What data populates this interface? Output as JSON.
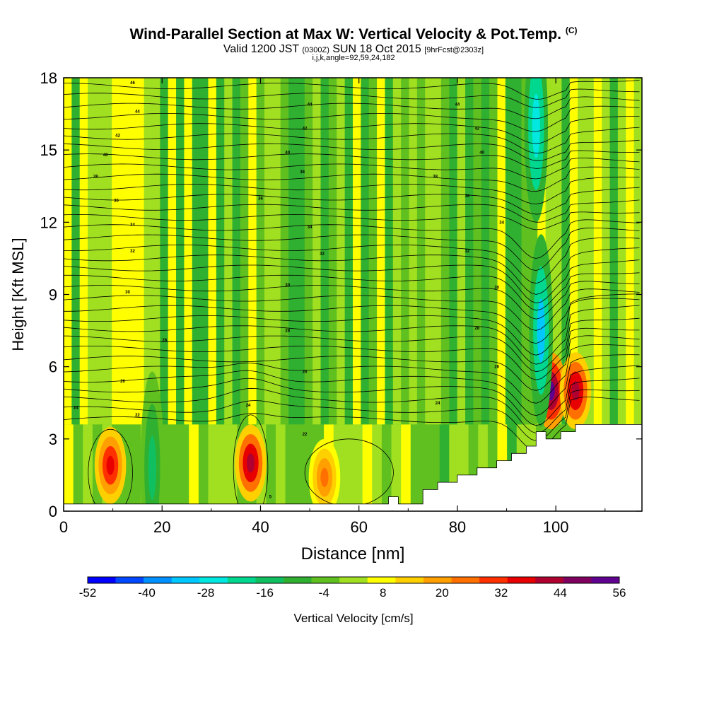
{
  "header": {
    "title_main": "Wind-Parallel Section at Max W: Vertical Velocity & Pot.Temp.",
    "copyright": "(C)",
    "valid_prefix": "Valid 1200 JST",
    "valid_utc": "(0300Z)",
    "valid_date": "SUN 18 Oct 2015",
    "forecast": "[9hrFcst@2303z]",
    "indices": "i,j,k,angle=92,59,24,182"
  },
  "chart_data": {
    "type": "heatmap",
    "xlabel": "Distance [nm]",
    "ylabel": "Height [Kft MSL]",
    "xlim": [
      0,
      117.5
    ],
    "ylim": [
      0,
      18
    ],
    "x_ticks": [
      0,
      20,
      40,
      60,
      80,
      100
    ],
    "y_ticks": [
      0,
      3,
      6,
      9,
      12,
      15,
      18
    ],
    "colorbar": {
      "label": "Vertical Velocity [cm/s]",
      "min": -52,
      "max": 56,
      "ticks": [
        -52,
        -40,
        -28,
        -16,
        -4,
        8,
        20,
        32,
        44,
        56
      ],
      "colors": [
        "#0000ff",
        "#0048ff",
        "#0090ff",
        "#00c8ff",
        "#00e8e0",
        "#00d890",
        "#10c060",
        "#30b030",
        "#60c020",
        "#a0e020",
        "#ffff00",
        "#ffd000",
        "#ffa000",
        "#ff7000",
        "#ff3000",
        "#e80000",
        "#b00030",
        "#800060",
        "#600090"
      ]
    },
    "terrain": [
      [
        0,
        0.3
      ],
      [
        66,
        0.3
      ],
      [
        66,
        0.6
      ],
      [
        68,
        0.6
      ],
      [
        68,
        0.3
      ],
      [
        73,
        0.3
      ],
      [
        73,
        0.9
      ],
      [
        76,
        0.9
      ],
      [
        76,
        1.2
      ],
      [
        80,
        1.2
      ],
      [
        80,
        1.5
      ],
      [
        84,
        1.5
      ],
      [
        84,
        1.8
      ],
      [
        88,
        1.8
      ],
      [
        88,
        2.1
      ],
      [
        91,
        2.1
      ],
      [
        91,
        2.4
      ],
      [
        94,
        2.4
      ],
      [
        94,
        2.7
      ],
      [
        96,
        2.7
      ],
      [
        96,
        3.3
      ],
      [
        98,
        3.3
      ],
      [
        98,
        3.0
      ],
      [
        101,
        3.0
      ],
      [
        101,
        3.3
      ],
      [
        104,
        3.3
      ],
      [
        104,
        3.6
      ],
      [
        117.5,
        3.6
      ]
    ],
    "w_features": [
      {
        "x": 9.5,
        "z": 1.9,
        "w": 36
      },
      {
        "x": 18,
        "z": 1.8,
        "w": -14
      },
      {
        "x": 38,
        "z": 2.0,
        "w": 40
      },
      {
        "x": 53,
        "z": 1.4,
        "w": 22
      },
      {
        "x": 99,
        "z": 5.0,
        "w": 52
      },
      {
        "x": 104,
        "z": 5.0,
        "w": 44
      },
      {
        "x": 97,
        "z": 7.5,
        "w": -30
      },
      {
        "x": 96,
        "z": 16,
        "w": -28
      }
    ],
    "theta_contour_labels": [
      {
        "text": "46",
        "x": 14,
        "z": 17.8
      },
      {
        "text": "44",
        "x": 15,
        "z": 16.6
      },
      {
        "text": "42",
        "x": 11,
        "z": 15.6
      },
      {
        "text": "40",
        "x": 8.5,
        "z": 14.8
      },
      {
        "text": "38",
        "x": 6.5,
        "z": 13.9
      },
      {
        "text": "36",
        "x": 10.7,
        "z": 12.9
      },
      {
        "text": "34",
        "x": 14,
        "z": 11.9
      },
      {
        "text": "32",
        "x": 14,
        "z": 10.8
      },
      {
        "text": "30",
        "x": 13,
        "z": 9.1
      },
      {
        "text": "28",
        "x": 20.5,
        "z": 7.1
      },
      {
        "text": "26",
        "x": 12,
        "z": 5.4
      },
      {
        "text": "24",
        "x": 2.5,
        "z": 4.3
      },
      {
        "text": "22",
        "x": 15,
        "z": 4.0
      },
      {
        "text": "44",
        "x": 50,
        "z": 16.9
      },
      {
        "text": "42",
        "x": 49,
        "z": 15.9
      },
      {
        "text": "40",
        "x": 45.5,
        "z": 14.9
      },
      {
        "text": "38",
        "x": 48.5,
        "z": 14.1
      },
      {
        "text": "36",
        "x": 40,
        "z": 13.0
      },
      {
        "text": "34",
        "x": 50,
        "z": 11.8
      },
      {
        "text": "32",
        "x": 52.5,
        "z": 10.7
      },
      {
        "text": "30",
        "x": 45.5,
        "z": 9.4
      },
      {
        "text": "28",
        "x": 45.5,
        "z": 7.5
      },
      {
        "text": "26",
        "x": 49,
        "z": 5.8
      },
      {
        "text": "24",
        "x": 37.5,
        "z": 4.4
      },
      {
        "text": "22",
        "x": 49,
        "z": 3.2
      },
      {
        "text": "44",
        "x": 80,
        "z": 16.9
      },
      {
        "text": "42",
        "x": 84,
        "z": 15.9
      },
      {
        "text": "40",
        "x": 85,
        "z": 14.9
      },
      {
        "text": "38",
        "x": 75.5,
        "z": 13.9
      },
      {
        "text": "36",
        "x": 82,
        "z": 13.1
      },
      {
        "text": "34",
        "x": 89,
        "z": 12.0
      },
      {
        "text": "32",
        "x": 82,
        "z": 10.8
      },
      {
        "text": "30",
        "x": 88,
        "z": 9.3
      },
      {
        "text": "28",
        "x": 84,
        "z": 7.6
      },
      {
        "text": "26",
        "x": 88,
        "z": 6.0
      },
      {
        "text": "24",
        "x": 76,
        "z": 4.5
      },
      {
        "text": "5",
        "x": 42,
        "z": 0.6
      }
    ]
  }
}
